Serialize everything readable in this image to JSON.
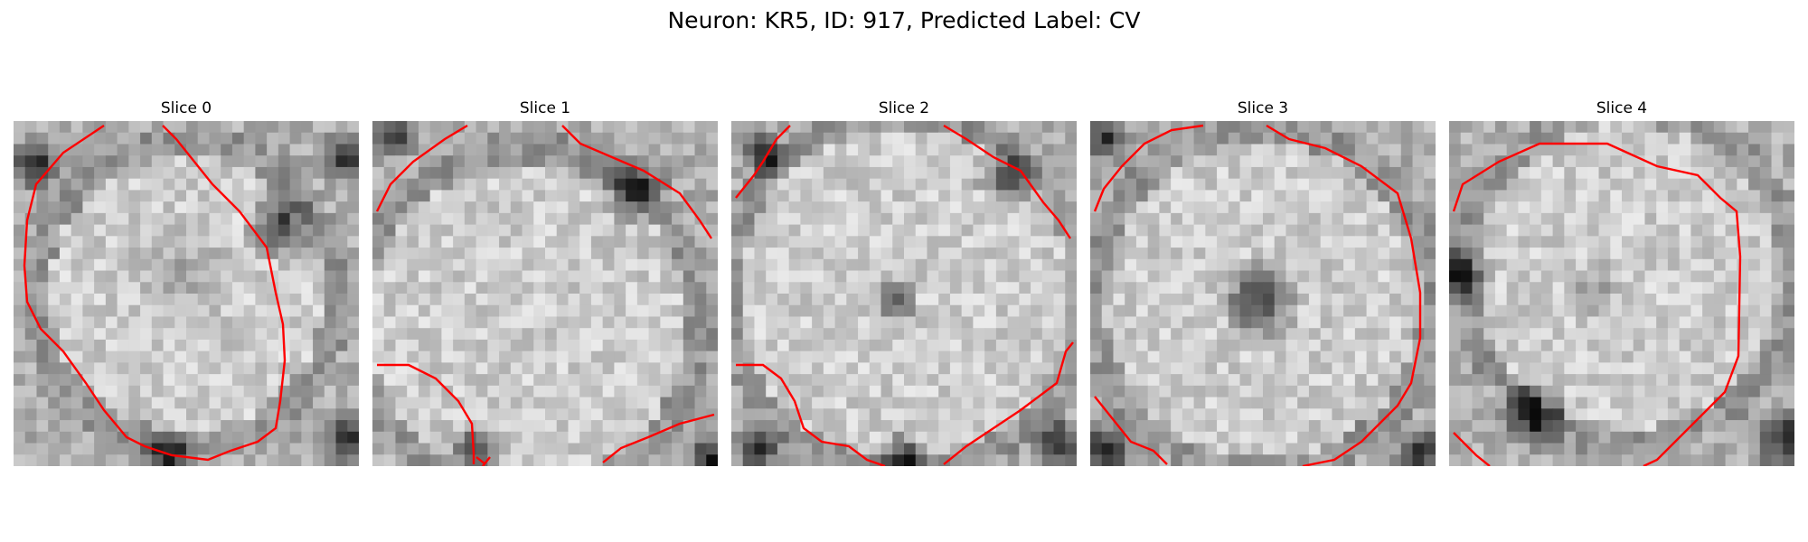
{
  "figure": {
    "title": "Neuron: KR5, ID: 917, Predicted Label: CV"
  },
  "panels": [
    {
      "title": "Slice 0"
    },
    {
      "title": "Slice 1"
    },
    {
      "title": "Slice 2"
    },
    {
      "title": "Slice 3"
    },
    {
      "title": "Slice 4"
    }
  ],
  "colors": {
    "contour": "#ff0000",
    "background": "#ffffff"
  }
}
